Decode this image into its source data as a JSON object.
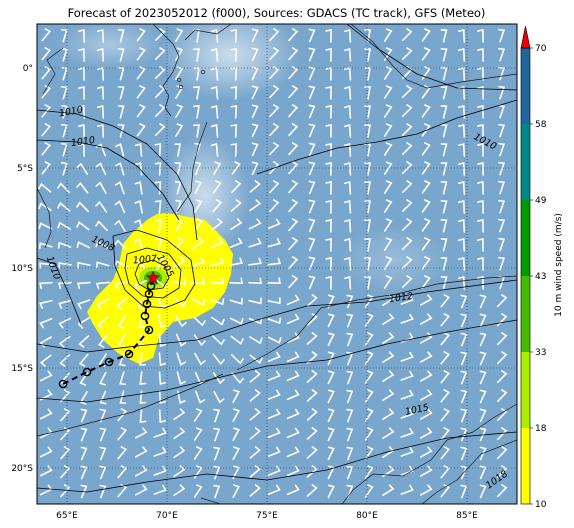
{
  "title": "Forecast of 2023052012 (f000), Sources: GDACS (TC track), GFS (Meteo)",
  "map": {
    "lon_range": [
      63.5,
      87.5
    ],
    "lat_range": [
      -21.8,
      2.2
    ],
    "lon_ticks": [
      {
        "value": 65,
        "label": "65°E"
      },
      {
        "value": 70,
        "label": "70°E"
      },
      {
        "value": 75,
        "label": "75°E"
      },
      {
        "value": 80,
        "label": "80°E"
      },
      {
        "value": 85,
        "label": "85°E"
      }
    ],
    "lat_ticks": [
      {
        "value": 0,
        "label": "0°"
      },
      {
        "value": -5,
        "label": "5°S"
      },
      {
        "value": -10,
        "label": "10°S"
      },
      {
        "value": -15,
        "label": "15°S"
      },
      {
        "value": -20,
        "label": "20°S"
      }
    ],
    "ocean_color": "#79a6cc",
    "gridlines": true
  },
  "cyclone": {
    "current_position": {
      "lon": 69.3,
      "lat": -10.5
    },
    "marker_color": "#d40000",
    "past_track": [
      {
        "lon": 64.8,
        "lat": -15.8
      },
      {
        "lon": 66.0,
        "lat": -15.2
      },
      {
        "lon": 67.1,
        "lat": -14.7
      },
      {
        "lon": 68.1,
        "lat": -14.3
      },
      {
        "lon": 69.1,
        "lat": -13.1
      },
      {
        "lon": 68.9,
        "lat": -12.4
      },
      {
        "lon": 69.0,
        "lat": -11.8
      },
      {
        "lon": 69.1,
        "lat": -11.3
      },
      {
        "lon": 69.2,
        "lat": -10.9
      }
    ],
    "wind_area_lon_lat": [
      [
        70.0,
        -7.25
      ],
      [
        71.9,
        -7.6
      ],
      [
        72.9,
        -8.6
      ],
      [
        73.3,
        -9.3
      ],
      [
        73.2,
        -10.3
      ],
      [
        72.9,
        -11.2
      ],
      [
        72.3,
        -12.0
      ],
      [
        71.4,
        -12.5
      ],
      [
        70.3,
        -12.7
      ],
      [
        69.6,
        -13.5
      ],
      [
        69.3,
        -14.5
      ],
      [
        68.6,
        -14.8
      ],
      [
        67.6,
        -14.3
      ],
      [
        66.8,
        -13.6
      ],
      [
        66.3,
        -12.8
      ],
      [
        66.0,
        -12.2
      ],
      [
        66.5,
        -11.4
      ],
      [
        67.3,
        -10.6
      ],
      [
        67.6,
        -9.8
      ],
      [
        67.8,
        -8.8
      ],
      [
        68.3,
        -8.2
      ],
      [
        69.0,
        -7.6
      ],
      [
        69.5,
        -7.3
      ]
    ]
  },
  "isobars": {
    "contours": [
      {
        "points": [
          [
            63.5,
            -21.0
          ],
          [
            66.0,
            -21.2
          ],
          [
            69.0,
            -20.7
          ],
          [
            72.0,
            -20.3
          ],
          [
            75.0,
            -20.6
          ],
          [
            78.0,
            -20.1
          ],
          [
            81.0,
            -19.2
          ],
          [
            84.0,
            -18.5
          ],
          [
            87.5,
            -18.2
          ]
        ]
      },
      {
        "points": [
          [
            63.5,
            -16.5
          ],
          [
            66.0,
            -16.7
          ],
          [
            68.0,
            -16.4
          ],
          [
            70.0,
            -16.1
          ],
          [
            72.5,
            -15.5
          ],
          [
            75.0,
            -14.9
          ],
          [
            78.0,
            -14.6
          ],
          [
            81.0,
            -13.8
          ],
          [
            84.0,
            -13.2
          ],
          [
            87.5,
            -12.6
          ]
        ]
      },
      {
        "points": [
          [
            63.5,
            -13.8
          ],
          [
            66.0,
            -14.2
          ],
          [
            68.5,
            -13.9
          ],
          [
            71.5,
            -13.6
          ],
          [
            74.5,
            -12.6
          ],
          [
            77.0,
            -11.9
          ],
          [
            80.0,
            -11.7
          ],
          [
            83.0,
            -11.2
          ],
          [
            87.5,
            -10.6
          ]
        ]
      },
      {
        "points": [
          [
            63.5,
            -9.5
          ],
          [
            64.4,
            -9.8
          ],
          [
            65.1,
            -11.3
          ],
          [
            65.7,
            -12.8
          ]
        ]
      },
      {
        "points": [
          [
            63.5,
            -2.1
          ],
          [
            65.5,
            -2.3
          ],
          [
            67.3,
            -2.9
          ],
          [
            69.0,
            -3.8
          ],
          [
            70.5,
            -5.3
          ],
          [
            71.3,
            -6.9
          ],
          [
            71.5,
            -8.6
          ]
        ]
      },
      {
        "points": [
          [
            63.5,
            -3.6
          ],
          [
            65.5,
            -3.7
          ],
          [
            67.0,
            -4.0
          ],
          [
            68.5,
            -4.9
          ],
          [
            69.8,
            -6.3
          ],
          [
            70.6,
            -7.6
          ]
        ]
      },
      {
        "points": [
          [
            67.3,
            -8.4
          ],
          [
            68.5,
            -8.1
          ],
          [
            70.0,
            -8.6
          ],
          [
            71.2,
            -9.6
          ],
          [
            71.4,
            -10.8
          ],
          [
            70.9,
            -11.6
          ],
          [
            69.9,
            -12.0
          ],
          [
            68.8,
            -11.9
          ],
          [
            67.9,
            -11.1
          ],
          [
            67.4,
            -9.9
          ],
          [
            67.3,
            -8.4
          ]
        ]
      },
      {
        "points": [
          [
            68.0,
            -9.3
          ],
          [
            69.0,
            -9.0
          ],
          [
            70.1,
            -9.3
          ],
          [
            70.7,
            -10.1
          ],
          [
            70.6,
            -11.0
          ],
          [
            69.8,
            -11.5
          ],
          [
            68.8,
            -11.4
          ],
          [
            68.1,
            -10.8
          ],
          [
            67.9,
            -10.0
          ],
          [
            68.0,
            -9.3
          ]
        ]
      },
      {
        "points": [
          [
            68.6,
            -9.8
          ],
          [
            69.3,
            -9.6
          ],
          [
            69.9,
            -9.9
          ],
          [
            70.1,
            -10.5
          ],
          [
            69.8,
            -11.0
          ],
          [
            69.1,
            -11.1
          ],
          [
            68.6,
            -10.8
          ],
          [
            68.4,
            -10.3
          ],
          [
            68.6,
            -9.8
          ]
        ]
      },
      {
        "points": [
          [
            74.5,
            -5.3
          ],
          [
            76.5,
            -4.6
          ],
          [
            78.5,
            -4.0
          ],
          [
            80.5,
            -3.7
          ],
          [
            82.5,
            -3.3
          ],
          [
            84.5,
            -2.5
          ],
          [
            87.5,
            -1.6
          ]
        ]
      },
      {
        "points": [
          [
            79.0,
            2.2
          ],
          [
            80.5,
            1.0
          ],
          [
            82.5,
            -0.3
          ],
          [
            84.5,
            -1.0
          ],
          [
            87.5,
            -1.1
          ]
        ]
      }
    ],
    "labels": [
      {
        "text": "1010",
        "lon": 65.2,
        "lat": -2.2,
        "angle": -10
      },
      {
        "text": "1010",
        "lon": 65.8,
        "lat": -3.7,
        "angle": -8
      },
      {
        "text": "1010",
        "lon": 64.3,
        "lat": -10.0,
        "angle": 70
      },
      {
        "text": "1008",
        "lon": 66.8,
        "lat": -8.8,
        "angle": 25
      },
      {
        "text": "1007",
        "lon": 68.9,
        "lat": -9.6,
        "angle": -5
      },
      {
        "text": "1005",
        "lon": 69.9,
        "lat": -9.9,
        "angle": 60
      },
      {
        "text": "1012",
        "lon": 81.7,
        "lat": -11.5,
        "angle": -8
      },
      {
        "text": "1010",
        "lon": 85.9,
        "lat": -3.7,
        "angle": 28
      },
      {
        "text": "1015",
        "lon": 82.5,
        "lat": -17.1,
        "angle": -12
      },
      {
        "text": "1018",
        "lon": 86.5,
        "lat": -20.6,
        "angle": -35
      }
    ]
  },
  "land": {
    "coastlines": [
      [
        [
          69.3,
          2.2
        ],
        [
          69.8,
          1.7
        ],
        [
          70.3,
          1.2
        ],
        [
          70.6,
          0.6
        ],
        [
          70.3,
          -0.2
        ],
        [
          69.8,
          -0.9
        ],
        [
          70.1,
          -1.4
        ],
        [
          69.9,
          -2.0
        ],
        [
          70.2,
          -2.4
        ]
      ],
      [
        [
          70.9,
          1.4
        ],
        [
          71.4,
          1.9
        ],
        [
          72.5,
          1.7
        ],
        [
          73.2,
          2.2
        ]
      ],
      [
        [
          64.8,
          1.0
        ],
        [
          64.0,
          0.4
        ],
        [
          64.4,
          -0.3
        ],
        [
          63.8,
          -1.3
        ]
      ],
      [
        [
          79.2,
          2.2
        ],
        [
          80.3,
          1.3
        ],
        [
          81.3,
          0.1
        ],
        [
          82.0,
          -0.6
        ],
        [
          83.0,
          -1.0
        ],
        [
          84.7,
          -0.7
        ],
        [
          87.5,
          -0.3
        ]
      ],
      [
        [
          63.5,
          -18.4
        ],
        [
          64.8,
          -18.1
        ],
        [
          66.7,
          -17.6
        ],
        [
          68.3,
          -17.2
        ],
        [
          69.8,
          -16.6
        ],
        [
          71.5,
          -15.9
        ],
        [
          72.8,
          -15.3
        ]
      ],
      [
        [
          73.5,
          -15.1
        ],
        [
          75.0,
          -14.3
        ],
        [
          76.5,
          -13.4
        ],
        [
          77.7,
          -12.0
        ],
        [
          79.5,
          -11.6
        ],
        [
          81.5,
          -11.3
        ],
        [
          83.5,
          -10.8
        ],
        [
          86.0,
          -10.5
        ],
        [
          87.5,
          -10.4
        ]
      ],
      [
        [
          63.5,
          -6.0
        ],
        [
          64.1,
          -7.2
        ],
        [
          64.2,
          -8.2
        ],
        [
          63.9,
          -9.0
        ]
      ],
      [
        [
          72.0,
          -2.7
        ],
        [
          71.6,
          -3.8
        ],
        [
          71.3,
          -5.0
        ],
        [
          71.2,
          -6.2
        ],
        [
          70.5,
          -7.2
        ]
      ],
      [
        [
          78.6,
          -22.0
        ],
        [
          79.3,
          -21.1
        ],
        [
          80.3,
          -20.3
        ],
        [
          81.8,
          -20.4
        ],
        [
          83.2,
          -19.6
        ],
        [
          84.0,
          -18.6
        ],
        [
          85.3,
          -18.2
        ],
        [
          86.3,
          -17.5
        ],
        [
          87.5,
          -16.8
        ]
      ],
      [
        [
          82.5,
          -22.0
        ],
        [
          83.5,
          -21.2
        ],
        [
          84.5,
          -20.6
        ],
        [
          85.7,
          -19.3
        ],
        [
          87.5,
          -18.6
        ]
      ],
      [
        [
          71.7,
          -21.5
        ],
        [
          73.0,
          -21.9
        ],
        [
          74.5,
          -22.0
        ]
      ]
    ],
    "islands": [
      {
        "lon": 70.6,
        "lat": -0.6
      },
      {
        "lon": 71.8,
        "lat": -0.2
      },
      {
        "lon": 70.7,
        "lat": -0.95
      }
    ]
  },
  "colorbar": {
    "label": "10 m wind speed (m/s)",
    "levels": [
      10,
      18,
      33,
      43,
      49,
      58,
      70
    ],
    "colors": [
      "#ffff00",
      "#aaee00",
      "#44bb00",
      "#009900",
      "#008888",
      "#226699",
      "#1a2566"
    ],
    "over_color": "#ee0000"
  }
}
